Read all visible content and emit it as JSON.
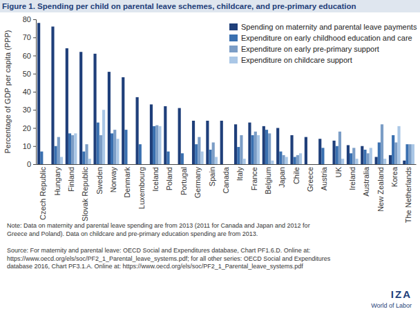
{
  "chart_data": {
    "type": "bar",
    "title": "Figure 1. Spending per child on parental leave schemes, childcare, and pre-primary education",
    "y_label": "Percentage of GDP per capita (PPP)",
    "categories": [
      "Czech Republic",
      "Hungary",
      "Finland",
      "Slovak Republic",
      "Sweden",
      "Norway",
      "Denmark",
      "Luxembourg",
      "Iceland",
      "Poland",
      "Portugal",
      "Germany",
      "Spain",
      "Canada",
      "Italy",
      "France",
      "Belgium",
      "Japan",
      "Chile",
      "Greece",
      "Austria",
      "UK",
      "Ireland",
      "Australia",
      "New Zealand",
      "Korea",
      "The Netherlands"
    ],
    "series": [
      {
        "name": "Spending on maternity and parental leave payments",
        "color": "#1f3f7a",
        "values": [
          78,
          76,
          64,
          62,
          61,
          51,
          48,
          37,
          33,
          32,
          31,
          24,
          24,
          24,
          22,
          23,
          21,
          20,
          16,
          15,
          14,
          13,
          10.5,
          10,
          4,
          5,
          2
        ]
      },
      {
        "name": "Expenditure on early childhood education and care",
        "color": "#3a70b0",
        "values": [
          7,
          10,
          17,
          7,
          23,
          17,
          19,
          11,
          21,
          7,
          6,
          11,
          8,
          null,
          9.5,
          16,
          19,
          7,
          4,
          null,
          9,
          10,
          6,
          8,
          12,
          16,
          11
        ]
      },
      {
        "name": "Expenditure on early pre-primary support",
        "color": "#7b9dc6",
        "values": [
          null,
          15,
          16,
          11,
          16,
          19,
          null,
          null,
          21.5,
          null,
          null,
          15,
          12,
          null,
          16,
          18,
          17,
          5,
          5,
          null,
          null,
          18,
          9,
          6,
          22,
          12,
          11
        ]
      },
      {
        "name": "Expenditure on childcare support",
        "color": "#aac7e6",
        "values": [
          null,
          4,
          17,
          3,
          30,
          14,
          null,
          null,
          21,
          null,
          null,
          7,
          4,
          null,
          3,
          16,
          2,
          4,
          6,
          null,
          null,
          3,
          3,
          9,
          3,
          21,
          11
        ]
      }
    ],
    "ylim": [
      0,
      80
    ],
    "yticks": [
      0,
      10,
      20,
      30,
      40,
      50,
      60,
      70,
      80
    ],
    "grid": false,
    "legend": "top-right",
    "notes": [
      "Note: Data on maternity and parental leave spending are from 2013 (2011 for Canada and Japan and 2012 for",
      "Greece and Poland). Data on childcare and pre-primary education spending are from 2013."
    ],
    "source": [
      "Source: For maternity and parental leave: OECD Social and Expenditures database, Chart PF1.6.D. Online at:",
      "https://www.oecd.org/els/soc/PF2_1_Parental_leave_systems.pdf; for all other series: OECD Social and Expenditures",
      "database 2016, Chart PF3.1.A. Online at: https://www.oecd.org/els/soc/PF2_1_Parental_leave_systems.pdf"
    ],
    "logo": [
      "IZA",
      "World of Labor"
    ]
  }
}
